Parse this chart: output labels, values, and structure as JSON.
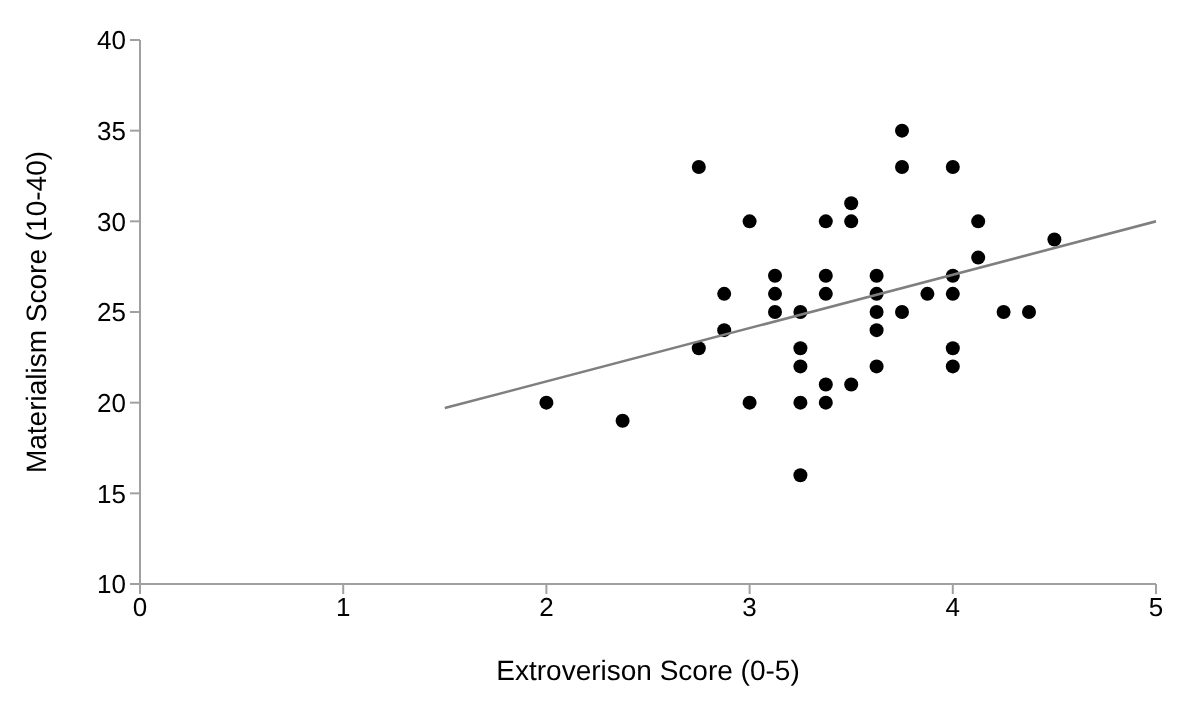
{
  "chart_data": {
    "type": "scatter",
    "xlabel": "Extroverison Score (0-5)",
    "ylabel": "Materialism Score (10-40)",
    "xlim": [
      0,
      5
    ],
    "xticks": [
      0,
      1,
      2,
      3,
      4,
      5
    ],
    "ylim": [
      10,
      40
    ],
    "yticks": [
      10,
      15,
      20,
      25,
      30,
      35,
      40
    ],
    "grid": false,
    "marker": "circle",
    "series": [
      {
        "color": "#000000",
        "x": [
          2,
          2.375,
          2.75,
          2.75,
          2.875,
          2.875,
          3,
          3,
          3.125,
          3.125,
          3.125,
          3.25,
          3.25,
          3.25,
          3.25,
          3.25,
          3.375,
          3.375,
          3.375,
          3.375,
          3.375,
          3.5,
          3.5,
          3.5,
          3.625,
          3.625,
          3.625,
          3.625,
          3.625,
          3.75,
          3.75,
          3.75,
          3.875,
          4,
          4,
          4,
          4,
          4,
          4.125,
          4.125,
          4.25,
          4.375,
          4.5
        ],
        "values": [
          20,
          19,
          33,
          23,
          26,
          24,
          30,
          20,
          27,
          26,
          25,
          25,
          23,
          22,
          20,
          16,
          30,
          27,
          26,
          21,
          20,
          31,
          30,
          21,
          27,
          26,
          25,
          24,
          22,
          35,
          33,
          25,
          26,
          33,
          27,
          26,
          23,
          22,
          30,
          28,
          25,
          25,
          29
        ]
      },
      {
        "type": "line",
        "color": "#7f7f7f",
        "marker": "none",
        "line_style": "solid",
        "x": [
          1.5,
          5
        ],
        "values": [
          19.7,
          30
        ]
      }
    ]
  }
}
